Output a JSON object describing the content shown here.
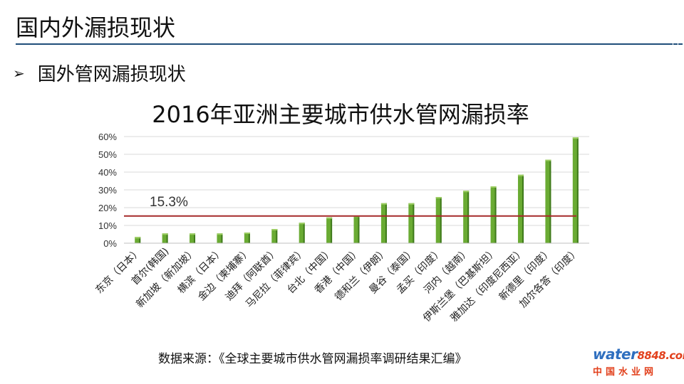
{
  "slide": {
    "title": "国内外漏损现状",
    "bullet_marker": "➢",
    "bullet_text": "国外管网漏损现状",
    "source": "数据来源：《全球主要城市供水管网漏损率调研结果汇编》"
  },
  "logo": {
    "word": "water",
    "number": "8848",
    "suffix": ".com",
    "caption": "中国水业网"
  },
  "colors": {
    "bar": "#6aab33",
    "bar_dark": "#3f7a1c",
    "bar_light": "#9ccd62",
    "reference_line": "#a52a2a",
    "grid": "#d9d9d9"
  },
  "chart_data": {
    "type": "bar",
    "title": "2016年亚洲主要城市供水管网漏损率",
    "categories": [
      "东京（日本）",
      "首尔(韩国)",
      "新加坡（新加坡）",
      "横滨（日本）",
      "金边（柬埔寨）",
      "迪拜（阿联酋）",
      "马尼拉（菲律宾）",
      "台北（中国）",
      "香港（中国）",
      "德和兰（伊朗）",
      "曼谷（泰国）",
      "孟买（印度）",
      "河内（越南）",
      "伊斯兰堡（巴基斯坦）",
      "雅加达（印度尼西亚）",
      "新德里（印度）",
      "加尔各答（印度）"
    ],
    "values": [
      3.5,
      5.5,
      5.5,
      5.5,
      6,
      8,
      11.5,
      14.5,
      15.5,
      22.5,
      22.5,
      26,
      29.5,
      32,
      38.5,
      47,
      59.5
    ],
    "ylim": [
      0,
      60
    ],
    "yticks": [
      "0%",
      "10%",
      "20%",
      "30%",
      "40%",
      "50%",
      "60%"
    ],
    "grid": true,
    "reference_line": {
      "value": 15.3,
      "label": "15.3%"
    }
  }
}
